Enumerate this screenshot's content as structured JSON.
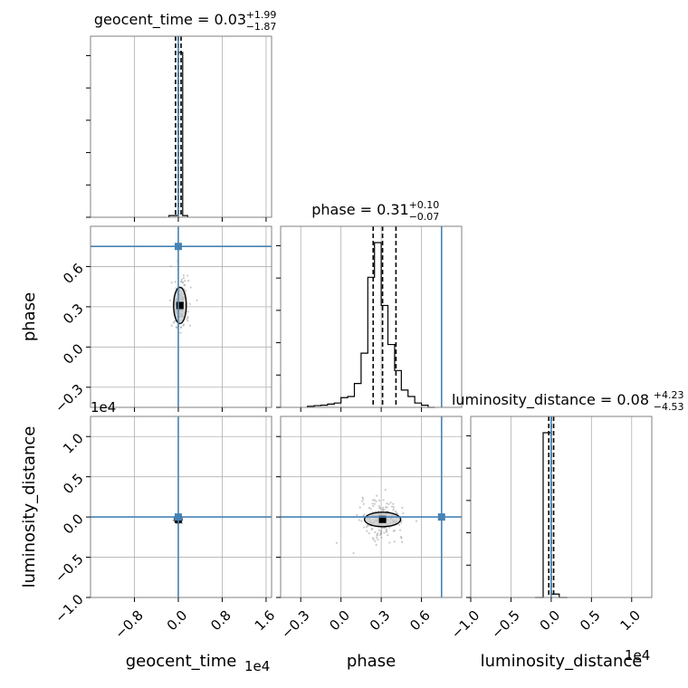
{
  "chart_data": {
    "type": "corner",
    "parameters": [
      "geocent_time",
      "phase",
      "luminosity_distance"
    ],
    "titles": [
      {
        "param": "geocent_time",
        "label": "geocent_time = 0.03",
        "median": "0.03",
        "plus": "+1.99",
        "minus": "−1.87"
      },
      {
        "param": "phase",
        "label": "phase = 0.31",
        "median": "0.31",
        "plus": "+0.10",
        "minus": "−0.07"
      },
      {
        "param": "luminosity_distance",
        "label": "luminosity_distance = 0.08",
        "median": "0.08",
        "plus": "+4.23",
        "minus": "−4.53"
      }
    ],
    "axes": {
      "geocent_time": {
        "range": [
          -1.6,
          1.7
        ],
        "ticks": [
          -0.8,
          0.0,
          0.8,
          1.6
        ],
        "tick_labels": [
          "−0.8",
          "0.0",
          "0.8",
          "1.6"
        ],
        "offset_label": "1e4",
        "quantiles": [
          -0.05,
          0.0,
          0.05
        ],
        "truth": 0.0
      },
      "phase": {
        "range": [
          -0.45,
          0.9
        ],
        "ticks": [
          -0.3,
          0.0,
          0.3,
          0.6
        ],
        "tick_labels": [
          "−0.3",
          "0.0",
          "0.3",
          "0.6"
        ],
        "quantiles": [
          0.24,
          0.31,
          0.41
        ],
        "truth": 0.75
      },
      "luminosity_distance": {
        "range": [
          -1.0,
          1.25
        ],
        "ticks": [
          -1.0,
          -0.5,
          0.0,
          0.5,
          1.0
        ],
        "tick_labels": [
          "−1.0",
          "−0.5",
          "0.0",
          "0.5",
          "1.0"
        ],
        "offset_label": "1e4",
        "quantiles": [
          -0.03,
          0.0,
          0.03
        ],
        "truth": 0.0
      }
    },
    "histograms": {
      "geocent_time": {
        "edges": [
          -0.17,
          -0.08,
          0.0,
          0.08,
          0.17
        ],
        "counts": [
          0.01,
          0.01,
          0.99,
          0.01
        ]
      },
      "phase": {
        "edges": [
          -0.25,
          -0.2,
          -0.15,
          -0.1,
          -0.05,
          0.0,
          0.05,
          0.1,
          0.15,
          0.2,
          0.25,
          0.3,
          0.35,
          0.4,
          0.45,
          0.5,
          0.55,
          0.6,
          0.65,
          0.7
        ],
        "counts": [
          0.005,
          0.008,
          0.01,
          0.015,
          0.02,
          0.045,
          0.05,
          0.11,
          0.25,
          0.6,
          0.76,
          0.47,
          0.29,
          0.17,
          0.08,
          0.05,
          0.02,
          0.01,
          0.0
        ]
      },
      "luminosity_distance": {
        "edges": [
          -0.2,
          -0.1,
          0.0,
          0.1,
          0.2
        ],
        "counts": [
          0.0,
          0.98,
          0.02,
          0.0
        ]
      }
    },
    "grid": true,
    "truth_color": "#4682b4",
    "sample_color": "#9e9e9e",
    "line_color": "#000000"
  }
}
